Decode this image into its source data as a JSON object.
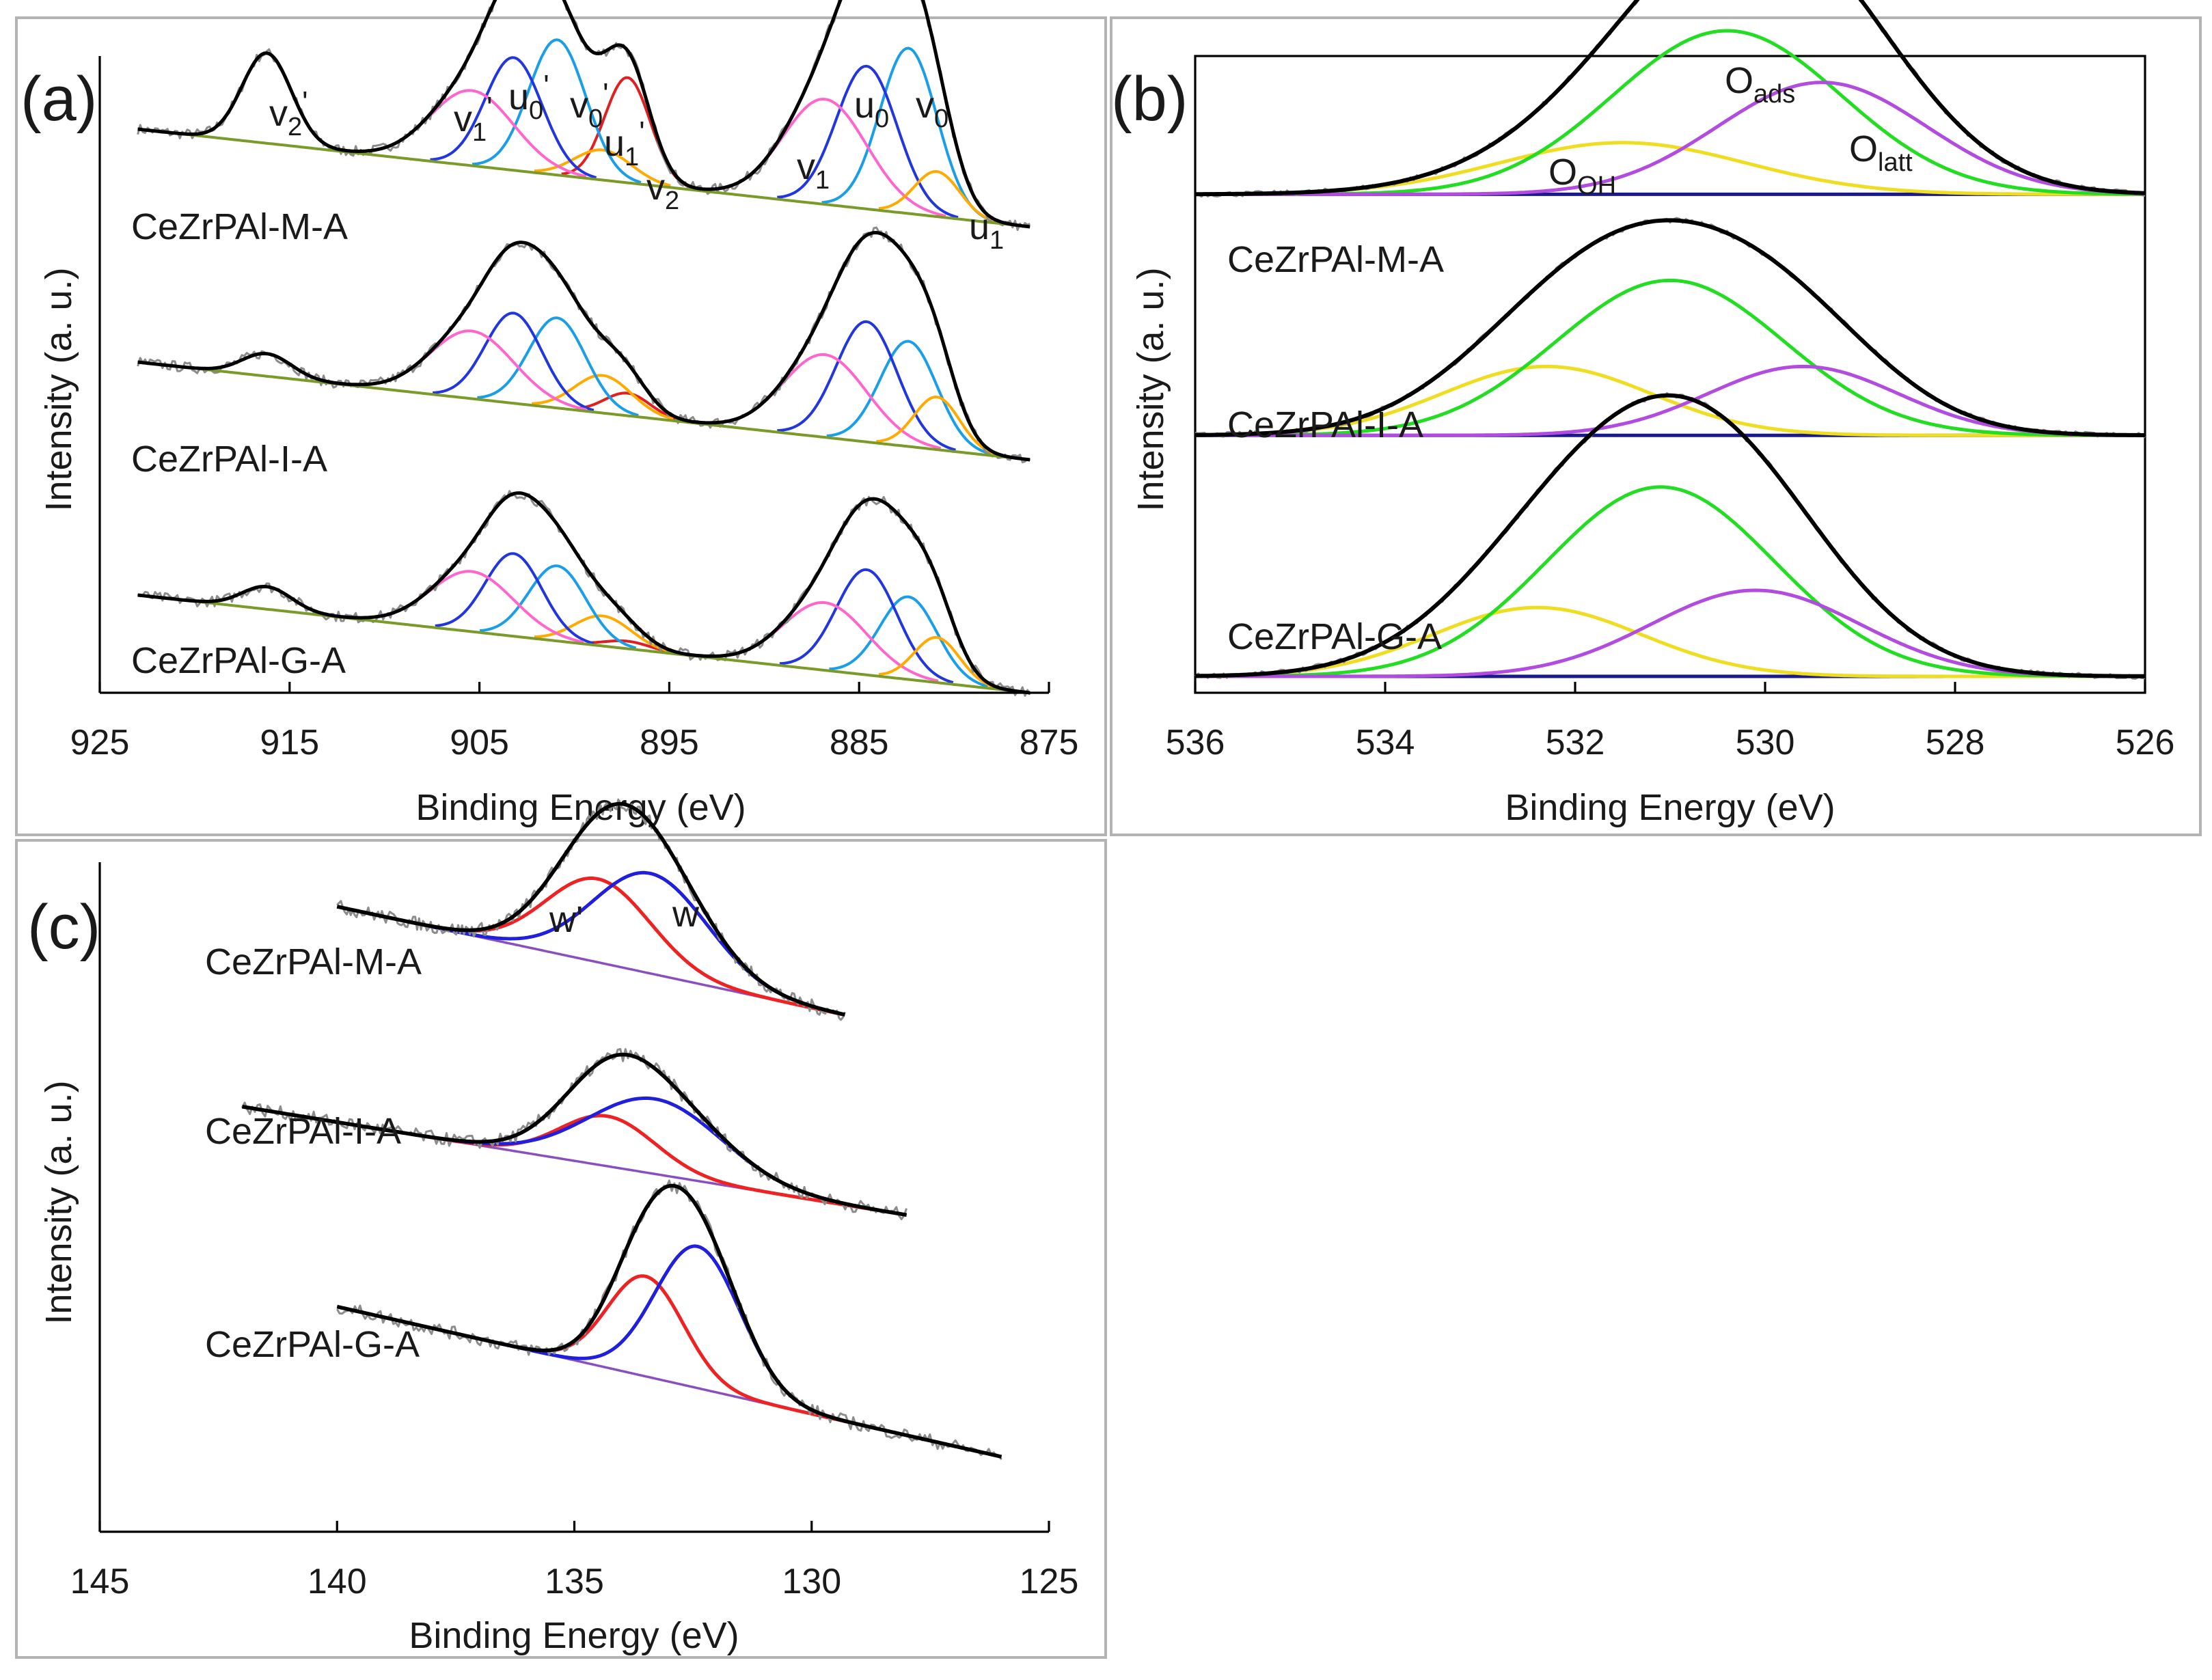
{
  "figure": {
    "colors": {
      "raw": "#8c8c8c",
      "envelope": "#000000",
      "background": "#7a9a2a",
      "v0": "#1a9ee8",
      "u0": "#2236e0",
      "v1": "#ff66cc",
      "u1": "#ffaa00",
      "v2": "#e02020",
      "v2p": "#b02020",
      "olatt": "#b24be0",
      "oads": "#22dd22",
      "ooh": "#eedd20",
      "w": "#1f1fdd",
      "wp": "#ee2222",
      "pbase": "#8a4fbf"
    }
  },
  "chart_data": [
    {
      "panel": "(a)",
      "type": "line",
      "xlabel": "Binding Energy (eV)",
      "ylabel": "Intensity (a. u.)",
      "xlim": [
        925,
        875
      ],
      "xticks": [
        "925",
        "915",
        "905",
        "895",
        "885",
        "875"
      ],
      "samples": [
        {
          "name": "CeZrPAl-M-A",
          "offset": 0.62
        },
        {
          "name": "CeZrPAl-I-A",
          "offset": 0.31
        },
        {
          "name": "CeZrPAl-G-A",
          "offset": 0.0
        }
      ],
      "components": [
        {
          "key": "v0",
          "label": "v0",
          "center": 882.4,
          "width": 1.5,
          "heights": [
            0.22,
            0.14,
            0.11
          ]
        },
        {
          "key": "u0",
          "label": "u0",
          "center": 884.6,
          "width": 1.6,
          "heights": [
            0.19,
            0.16,
            0.14
          ]
        },
        {
          "key": "v1",
          "label": "v1",
          "center": 886.8,
          "width": 2.2,
          "heights": [
            0.14,
            0.11,
            0.09
          ]
        },
        {
          "key": "u1",
          "label": "u1",
          "center": 880.9,
          "width": 1.2,
          "heights": [
            0.06,
            0.07,
            0.06
          ]
        },
        {
          "key": "v2",
          "label": "v2",
          "center": 897.2,
          "width": 1.2,
          "heights": [
            0.14,
            0.03,
            0.01
          ]
        },
        {
          "key": "u1",
          "label": "u1'",
          "center": 898.5,
          "width": 1.5,
          "heights": [
            0.04,
            0.05,
            0.04
          ]
        },
        {
          "key": "v0",
          "label": "v0'",
          "center": 900.9,
          "width": 1.5,
          "heights": [
            0.18,
            0.12,
            0.1
          ]
        },
        {
          "key": "u0",
          "label": "u0'",
          "center": 903.2,
          "width": 1.5,
          "heights": [
            0.15,
            0.12,
            0.11
          ]
        },
        {
          "key": "v1",
          "label": "v1'",
          "center": 905.4,
          "width": 2.2,
          "heights": [
            0.1,
            0.09,
            0.08
          ]
        },
        {
          "key": "v2p",
          "label": "v2'",
          "center": 916.2,
          "width": 1.3,
          "heights": [
            0.12,
            0.03,
            0.03
          ]
        }
      ],
      "background": {
        "high_end": 0.13,
        "low_end": 0.0
      }
    },
    {
      "panel": "(b)",
      "type": "line",
      "xlabel": "Binding Energy (eV)",
      "ylabel": "Intensity (a. u.)",
      "xlim": [
        536,
        526
      ],
      "xticks": [
        "536",
        "534",
        "532",
        "530",
        "528",
        "526"
      ],
      "samples": [
        {
          "name": "CeZrPAl-M-A",
          "offset": 0.56
        },
        {
          "name": "CeZrPAl-I-A",
          "offset": 0.28
        },
        {
          "name": "CeZrPAl-G-A",
          "offset": 0.0
        }
      ],
      "components": [
        {
          "key": "ooh",
          "label": "O_OH",
          "center": [
            531.5,
            532.3,
            532.4
          ],
          "width": [
            1.3,
            1.1,
            1.1
          ],
          "heights": [
            0.06,
            0.08,
            0.08
          ]
        },
        {
          "key": "oads",
          "label": "O_ads",
          "center": [
            530.4,
            531.0,
            531.1
          ],
          "width": [
            1.2,
            1.2,
            1.2
          ],
          "heights": [
            0.19,
            0.18,
            0.22
          ]
        },
        {
          "key": "olatt",
          "label": "O_latt",
          "center": [
            529.4,
            529.6,
            530.1
          ],
          "width": [
            1.1,
            1.0,
            1.1
          ],
          "heights": [
            0.13,
            0.08,
            0.1
          ]
        }
      ]
    },
    {
      "panel": "(c)",
      "type": "line",
      "xlabel": "Binding Energy (eV)",
      "ylabel": "Intensity (a. u.)",
      "xlim": [
        145,
        125
      ],
      "xticks": [
        "145",
        "140",
        "135",
        "130",
        "125"
      ],
      "samples": [
        {
          "name": "CeZrPAl-M-A",
          "x_range": [
            140,
            129.3
          ],
          "baseline": [
            0.75,
            0.62
          ],
          "peaks": [
            {
              "key": "wp",
              "center": 134.5,
              "width": 1.1,
              "height": 0.1
            },
            {
              "key": "w",
              "center": 133.4,
              "width": 1.2,
              "height": 0.12
            }
          ]
        },
        {
          "name": "CeZrPAl-I-A",
          "x_range": [
            142,
            128.0
          ],
          "baseline": [
            0.51,
            0.38
          ],
          "peaks": [
            {
              "key": "wp",
              "center": 134.3,
              "width": 1.0,
              "height": 0.06
            },
            {
              "key": "w",
              "center": 133.3,
              "width": 1.4,
              "height": 0.09
            }
          ]
        },
        {
          "name": "CeZrPAl-G-A",
          "x_range": [
            140,
            126.0
          ],
          "baseline": [
            0.27,
            0.09
          ],
          "peaks": [
            {
              "key": "wp",
              "center": 133.5,
              "width": 0.8,
              "height": 0.12
            },
            {
              "key": "w",
              "center": 132.4,
              "width": 0.9,
              "height": 0.17
            }
          ]
        }
      ]
    }
  ],
  "labels": {
    "panel_a": {
      "tag": "(a)",
      "sample_1": "CeZrPAl-M-A",
      "sample_2": "CeZrPAl-I-A",
      "sample_3": "CeZrPAl-G-A",
      "peaks": {
        "v2p": {
          "main": "v",
          "sub": "2",
          "sup": "'"
        },
        "v1p": {
          "main": "v",
          "sub": "1",
          "sup": "'"
        },
        "u0p": {
          "main": "u",
          "sub": "0",
          "sup": "'"
        },
        "v0p": {
          "main": "v",
          "sub": "0",
          "sup": "'"
        },
        "u1p": {
          "main": "u",
          "sub": "1",
          "sup": "'"
        },
        "v2": {
          "main": "v",
          "sub": "2"
        },
        "v1": {
          "main": "v",
          "sub": "1"
        },
        "u0": {
          "main": "u",
          "sub": "0"
        },
        "v0": {
          "main": "v",
          "sub": "0"
        },
        "u1": {
          "main": "u",
          "sub": "1"
        }
      },
      "xlabel": "Binding Energy (eV)",
      "ylabel": "Intensity (a. u.)"
    },
    "panel_b": {
      "tag": "(b)",
      "sample_1": "CeZrPAl-M-A",
      "sample_2": "CeZrPAl-I-A",
      "sample_3": "CeZrPAl-G-A",
      "peaks": {
        "oads": {
          "main": "O",
          "sub": "ads"
        },
        "olatt": {
          "main": "O",
          "sub": "latt"
        },
        "ooh": {
          "main": "O",
          "sub": "OH"
        }
      },
      "xlabel": "Binding Energy (eV)",
      "ylabel": "Intensity (a. u.)"
    },
    "panel_c": {
      "tag": "(c)",
      "sample_1": "CeZrPAl-M-A",
      "sample_2": "CeZrPAl-I-A",
      "sample_3": "CeZrPAl-G-A",
      "peak_wp": "w'",
      "peak_w": "w",
      "xlabel": "Binding Energy (eV)",
      "ylabel": "Intensity (a. u.)"
    }
  }
}
